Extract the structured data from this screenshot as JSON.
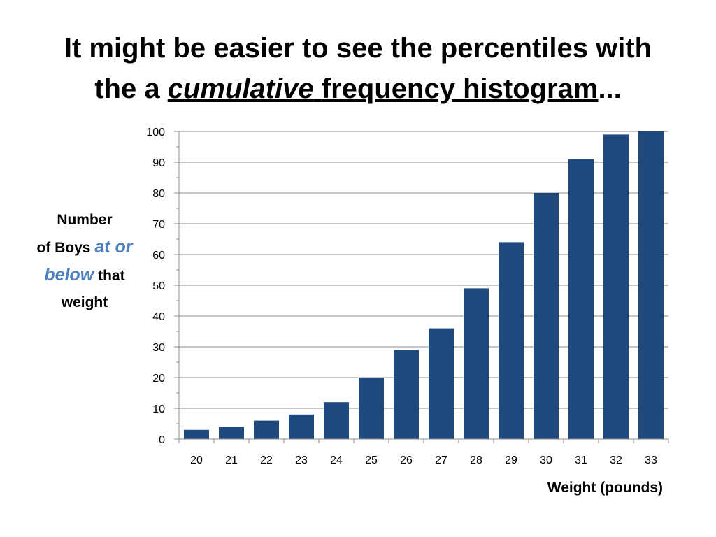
{
  "slide": {
    "title_line1": "It might be easier to see the percentiles with",
    "title_prefix": "the a ",
    "title_em": "cumulative",
    "title_space": " ",
    "title_underlined": "frequency histogram",
    "title_suffix": "..."
  },
  "ylabel": {
    "line1": "Number",
    "line2_plain": "of Boys ",
    "line2_em": "at or",
    "line3_em": "below",
    "line3_plain": " that",
    "line4": "weight"
  },
  "chart_data": {
    "type": "bar",
    "categories": [
      "20",
      "21",
      "22",
      "23",
      "24",
      "25",
      "26",
      "27",
      "28",
      "29",
      "30",
      "31",
      "32",
      "33"
    ],
    "values": [
      3,
      4,
      6,
      8,
      12,
      20,
      29,
      36,
      49,
      64,
      80,
      91,
      99,
      100
    ],
    "xlabel": "Weight (pounds)",
    "ylabel": "Number of Boys at or below that weight",
    "ylim": [
      0,
      100
    ],
    "yticks": [
      0,
      10,
      20,
      30,
      40,
      50,
      60,
      70,
      80,
      90,
      100
    ],
    "grid": true,
    "legend": "none",
    "bar_color": "#1f497d"
  }
}
